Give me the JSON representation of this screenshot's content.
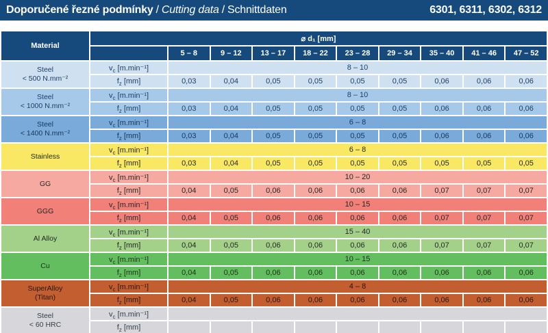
{
  "title_bar": {
    "title_cs": "Doporučené řezné podmínky",
    "sep": "/",
    "title_en": "Cutting data",
    "title_de": "Schnittdaten",
    "models": "6301, 6311, 6302, 6312",
    "bg": "#174a7c",
    "fg": "#ffffff"
  },
  "table": {
    "header": {
      "material": "Material",
      "diameter": "⌀ d₁ [mm]",
      "columns": [
        "5 – 8",
        "9 – 12",
        "13 – 17",
        "18 – 22",
        "23 – 28",
        "29 – 34",
        "35 – 40",
        "41 – 46",
        "47 – 52"
      ],
      "bg": "#174a7c",
      "fg": "#ffffff"
    },
    "param_vc": {
      "letter": "v",
      "sub": "c",
      "unit": " [m.min⁻¹]"
    },
    "param_fz": {
      "letter": "f",
      "sub": "z",
      "unit": " [mm]"
    },
    "rows": [
      {
        "material": "Steel",
        "material_sub": "< 500 N.mm⁻²",
        "bg": "#cfe0f1",
        "fg": "#1c3f66",
        "vc": "8 – 10",
        "fz": [
          "0,03",
          "0,04",
          "0,05",
          "0,05",
          "0,05",
          "0,05",
          "0,06",
          "0,06",
          "0,06"
        ]
      },
      {
        "material": "Steel",
        "material_sub": "< 1000 N.mm⁻²",
        "bg": "#a6c9e9",
        "fg": "#1c3f66",
        "vc": "8 – 10",
        "fz": [
          "0,03",
          "0,04",
          "0,05",
          "0,05",
          "0,05",
          "0,05",
          "0,06",
          "0,06",
          "0,06"
        ]
      },
      {
        "material": "Steel",
        "material_sub": "< 1400 N.mm⁻²",
        "bg": "#79aad9",
        "fg": "#16365c",
        "vc": "6 – 8",
        "fz": [
          "0,03",
          "0,04",
          "0,05",
          "0,05",
          "0,05",
          "0,05",
          "0,06",
          "0,06",
          "0,06"
        ]
      },
      {
        "material": "Stainless",
        "material_sub": "",
        "bg": "#f9e863",
        "fg": "#262626",
        "vc": "6 – 8",
        "fz": [
          "0,03",
          "0,04",
          "0,05",
          "0,05",
          "0,05",
          "0,05",
          "0,05",
          "0,05",
          "0,05"
        ]
      },
      {
        "material": "GG",
        "material_sub": "",
        "bg": "#f6a9a0",
        "fg": "#262626",
        "vc": "10 – 20",
        "fz": [
          "0,04",
          "0,05",
          "0,06",
          "0,06",
          "0,06",
          "0,06",
          "0,07",
          "0,07",
          "0,07"
        ]
      },
      {
        "material": "GGG",
        "material_sub": "",
        "bg": "#f08078",
        "fg": "#262626",
        "vc": "10 – 15",
        "fz": [
          "0,04",
          "0,05",
          "0,06",
          "0,06",
          "0,06",
          "0,06",
          "0,07",
          "0,07",
          "0,07"
        ]
      },
      {
        "material": "Al Alloy",
        "material_sub": "",
        "bg": "#a3d189",
        "fg": "#262626",
        "vc": "15 – 40",
        "fz": [
          "0,04",
          "0,05",
          "0,06",
          "0,06",
          "0,06",
          "0,06",
          "0,07",
          "0,07",
          "0,07"
        ]
      },
      {
        "material": "Cu",
        "material_sub": "",
        "bg": "#63be5f",
        "fg": "#1e2e1c",
        "vc": "10 – 15",
        "fz": [
          "0,04",
          "0,05",
          "0,06",
          "0,06",
          "0,06",
          "0,06",
          "0,06",
          "0,06",
          "0,06"
        ]
      },
      {
        "material": "SuperAlloy",
        "material_sub": "(Titan)",
        "bg": "#c35e30",
        "fg": "#26170f",
        "vc": "4 – 8",
        "fz": [
          "0,04",
          "0,05",
          "0,06",
          "0,06",
          "0,06",
          "0,06",
          "0,06",
          "0,06",
          "0,06"
        ]
      },
      {
        "material": "Steel",
        "material_sub": "< 60 HRC",
        "bg": "#d7d7db",
        "fg": "#33404d",
        "vc": "",
        "fz": [
          "",
          "",
          "",
          "",
          "",
          "",
          "",
          "",
          ""
        ]
      }
    ]
  }
}
